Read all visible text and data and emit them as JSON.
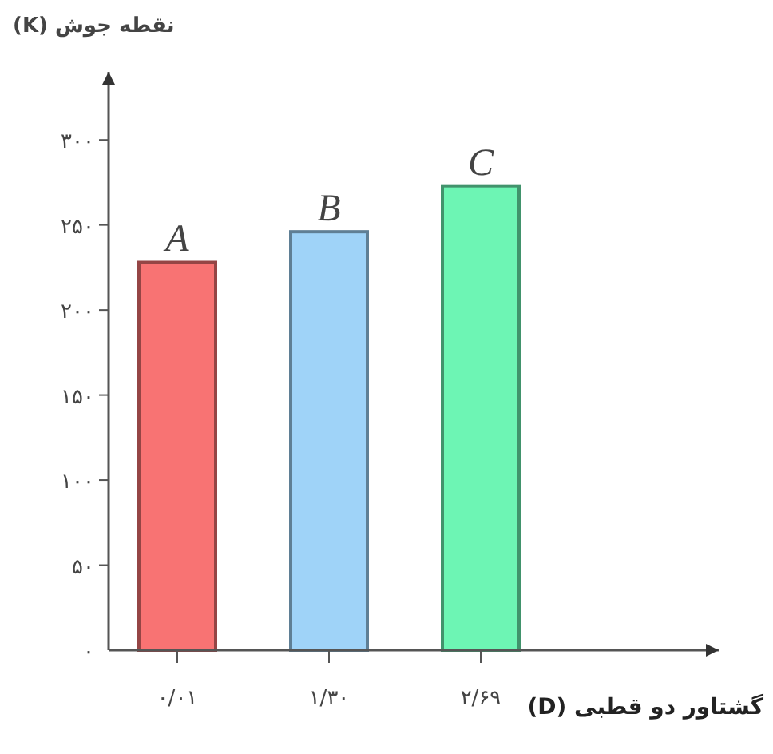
{
  "chart_data": {
    "type": "bar",
    "xlabel": "گشتاور دو قطبی (D)",
    "ylabel": "نقطه جوش (K)",
    "categories": [
      "۰/۰۱",
      "۱/۳۰",
      "۲/۶۹"
    ],
    "values": [
      228,
      246,
      273
    ],
    "colors": [
      "#f87373",
      "#9fd3f8",
      "#6df5b4"
    ],
    "ylim": [
      0,
      340
    ],
    "yticks": [
      {
        "value": 0,
        "label": "۰"
      },
      {
        "value": 50,
        "label": "۵۰"
      },
      {
        "value": 100,
        "label": "۱۰۰"
      },
      {
        "value": 150,
        "label": "۱۵۰"
      },
      {
        "value": 200,
        "label": "۲۰۰"
      },
      {
        "value": 250,
        "label": "۲۵۰"
      },
      {
        "value": 300,
        "label": "۳۰۰"
      }
    ],
    "annotations": [
      {
        "text": "A",
        "x": "۰/۰۱",
        "y": 228
      },
      {
        "text": "B",
        "x": "۱/۳۰",
        "y": 246
      },
      {
        "text": "C",
        "x": "۲/۶۹",
        "y": 273
      }
    ],
    "grid": false
  }
}
